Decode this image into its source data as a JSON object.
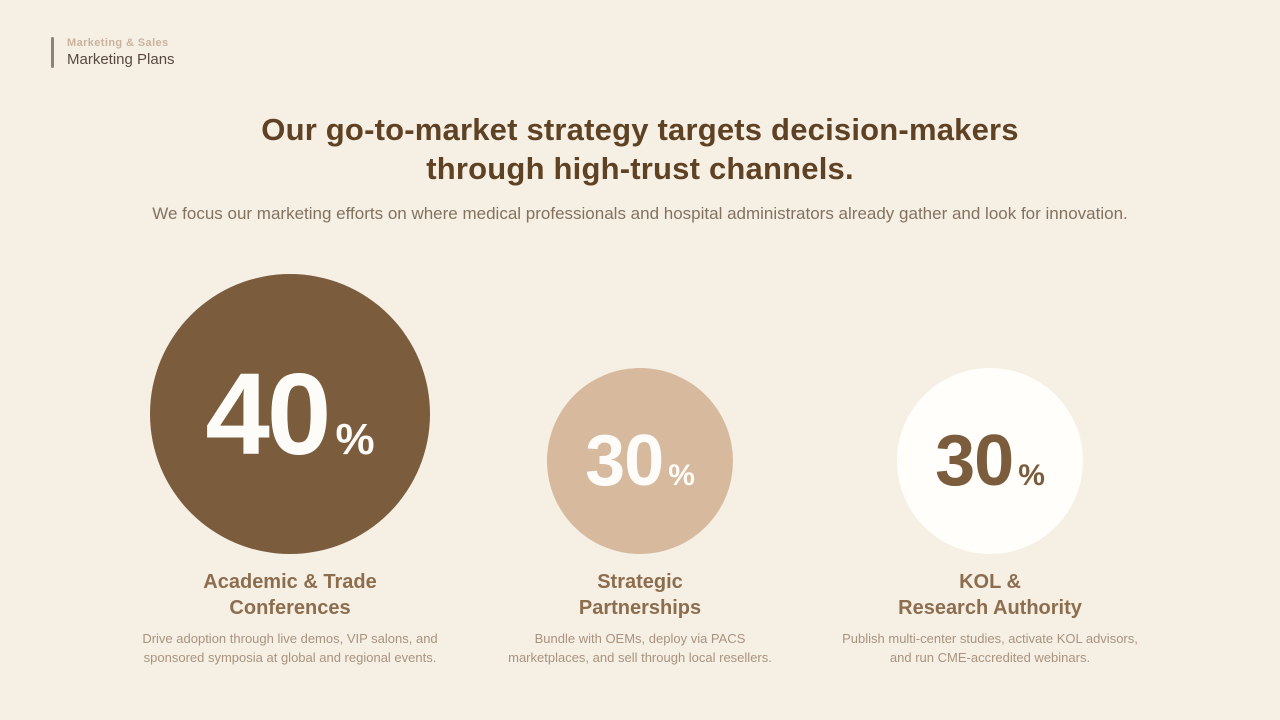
{
  "slide": {
    "header": {
      "eyebrow": "Marketing & Sales",
      "title": "Marketing Plans"
    },
    "title": {
      "line1": "Our go-to-market strategy targets decision-makers",
      "line2": "through high-trust channels."
    },
    "subtitle": "We focus our marketing efforts on where medical professionals and hospital administrators already gather and look for innovation.",
    "colors": {
      "background": "#f6efe4",
      "title_text": "#5f4224",
      "circle_primary_fill": "#7b5c3d",
      "circle_secondary_fill": "#d7b99d",
      "circle_tertiary_fill": "#fffefb",
      "circle_light_text": "#fdfcf8",
      "circle_dark_text": "#7b5c3d",
      "stat_heading_text": "#8c6e4f",
      "description_text": "#a9937f"
    },
    "stats": [
      {
        "value": "40",
        "unit": "%",
        "heading_line1": "Academic & Trade",
        "heading_line2": "Conferences",
        "desc_line1": "Drive adoption through live demos, VIP salons, and",
        "desc_line2": "sponsored symposia at global and regional events."
      },
      {
        "value": "30",
        "unit": "%",
        "heading_line1": "Strategic",
        "heading_line2": "Partnerships",
        "desc_line1": "Bundle with OEMs, deploy via PACS",
        "desc_line2": "marketplaces, and sell through local resellers."
      },
      {
        "value": "30",
        "unit": "%",
        "heading_line1": "KOL &",
        "heading_line2": "Research Authority",
        "desc_line1": "Publish multi-center studies, activate KOL advisors,",
        "desc_line2": "and run CME-accredited webinars."
      }
    ]
  },
  "chart_data": {
    "type": "pie",
    "title": "Marketing effort allocation by channel",
    "categories": [
      "Academic & Trade Conferences",
      "Strategic Partnerships",
      "KOL & Research Authority"
    ],
    "values": [
      40,
      30,
      30
    ],
    "unit": "%",
    "layout_hint": "proportional circles, largest highlighted in dark brown"
  }
}
